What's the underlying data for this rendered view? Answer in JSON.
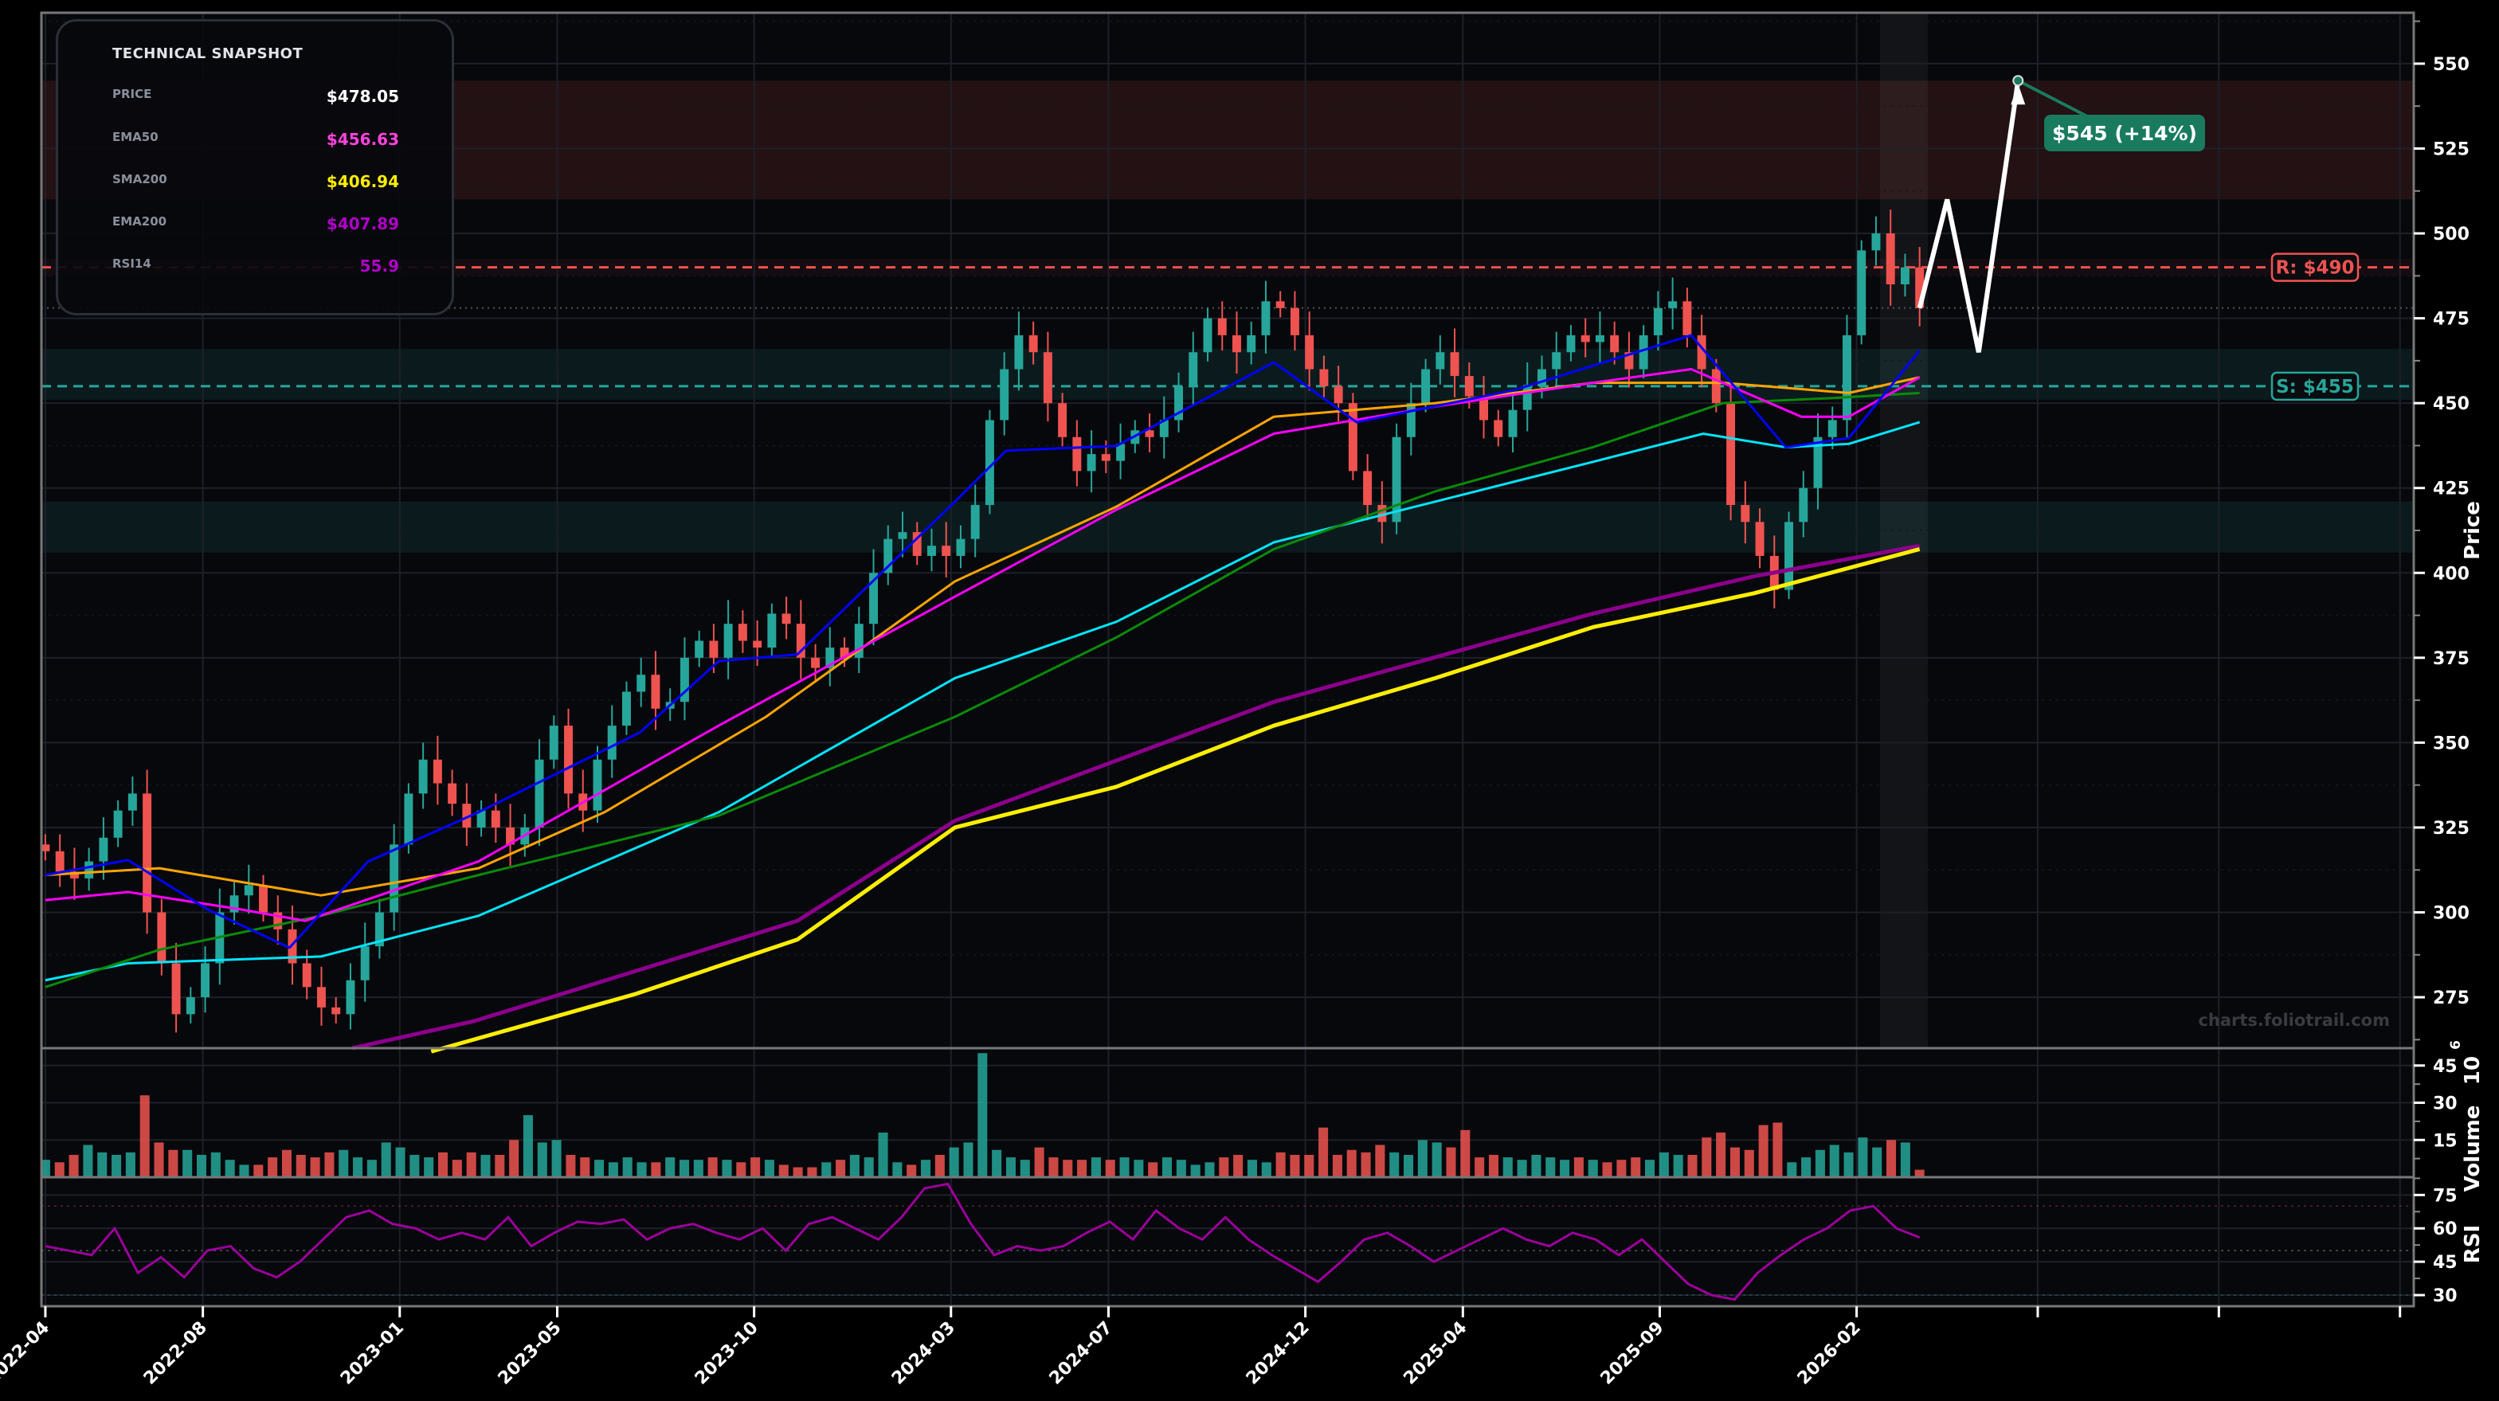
{
  "snapshot": {
    "title": "TECHNICAL SNAPSHOT",
    "rows": [
      {
        "label": "PRICE",
        "value": "$478.05",
        "color": "#ffffff"
      },
      {
        "label": "EMA50",
        "value": "$456.63",
        "color": "#ff44dd"
      },
      {
        "label": "SMA200",
        "value": "$406.94",
        "color": "#ffee00"
      },
      {
        "label": "EMA200",
        "value": "$407.89",
        "color": "#b000c8"
      },
      {
        "label": "RSI14",
        "value": "55.9",
        "color": "#b000c8"
      }
    ]
  },
  "watermark": "charts.foliotrail.com",
  "chart_data": {
    "type": "candlestick",
    "x_unit": "months since 2022-04",
    "xlim": [
      -0.1,
      60.15
    ],
    "x_ticks": [
      {
        "m": 0,
        "label": "2022-04"
      },
      {
        "m": 4,
        "label": "2022-08"
      },
      {
        "m": 9,
        "label": "2023-01"
      },
      {
        "m": 13,
        "label": "2023-05"
      },
      {
        "m": 18,
        "label": "2023-10"
      },
      {
        "m": 23,
        "label": "2024-03"
      },
      {
        "m": 27,
        "label": "2024-07"
      },
      {
        "m": 32,
        "label": "2024-12"
      },
      {
        "m": 36,
        "label": "2025-04"
      },
      {
        "m": 41,
        "label": "2025-09"
      },
      {
        "m": 46,
        "label": "2026-02"
      },
      {
        "m": 50.6,
        "label": ""
      },
      {
        "m": 55.2,
        "label": ""
      },
      {
        "m": 59.8,
        "label": ""
      }
    ],
    "price": {
      "ylabel": "Price",
      "ylim": [
        260,
        565
      ],
      "ticks": [
        275,
        300,
        325,
        350,
        375,
        400,
        425,
        450,
        475,
        500,
        525,
        550
      ],
      "start_m": 0,
      "end_m": 47.6,
      "closes": [
        318,
        312,
        310,
        315,
        322,
        330,
        335,
        300,
        285,
        270,
        275,
        285,
        300,
        305,
        308,
        300,
        295,
        285,
        278,
        272,
        270,
        280,
        290,
        300,
        320,
        335,
        345,
        338,
        332,
        325,
        330,
        325,
        320,
        325,
        345,
        355,
        335,
        330,
        345,
        355,
        365,
        370,
        360,
        362,
        375,
        380,
        375,
        385,
        380,
        378,
        388,
        385,
        375,
        372,
        378,
        375,
        385,
        400,
        410,
        412,
        405,
        408,
        405,
        410,
        420,
        445,
        460,
        470,
        465,
        450,
        440,
        430,
        435,
        433,
        438,
        442,
        440,
        445,
        455,
        465,
        475,
        470,
        465,
        470,
        480,
        478,
        470,
        460,
        455,
        450,
        430,
        420,
        415,
        440,
        450,
        460,
        465,
        458,
        452,
        445,
        440,
        448,
        455,
        460,
        465,
        470,
        468,
        470,
        465,
        460,
        470,
        478,
        480,
        470,
        460,
        450,
        420,
        415,
        405,
        395,
        415,
        425,
        440,
        445,
        470,
        495,
        500,
        485,
        490,
        478.05
      ],
      "up_color": "#26a69a",
      "down_color": "#ef5350"
    },
    "moving_averages": [
      {
        "name": "EMA200",
        "color": "#8b008b",
        "width": 5,
        "points": [
          [
            7.8,
            260
          ],
          [
            10.9,
            268
          ],
          [
            19.1,
            297.5
          ],
          [
            23.1,
            327
          ],
          [
            31.2,
            362
          ],
          [
            39.3,
            388
          ],
          [
            43.4,
            399
          ],
          [
            47.6,
            408
          ]
        ]
      },
      {
        "name": "SMA200",
        "color": "#ffee00",
        "width": 5,
        "points": [
          [
            9.8,
            259
          ],
          [
            15,
            276
          ],
          [
            19.1,
            292
          ],
          [
            23.1,
            325
          ],
          [
            27.2,
            337
          ],
          [
            31.2,
            355
          ],
          [
            35.3,
            369
          ],
          [
            39.3,
            384
          ],
          [
            43.4,
            394
          ],
          [
            47.6,
            407
          ]
        ]
      },
      {
        "name": "Cyan MA",
        "color": "#00e5ff",
        "width": 3,
        "points": [
          [
            0,
            280
          ],
          [
            2.1,
            285
          ],
          [
            7,
            287
          ],
          [
            11,
            299
          ],
          [
            17.1,
            329.5
          ],
          [
            23.1,
            369
          ],
          [
            27.2,
            385.6
          ],
          [
            31.2,
            409
          ],
          [
            35.3,
            421
          ],
          [
            39.3,
            432.7
          ],
          [
            42.1,
            441
          ],
          [
            44.2,
            437
          ],
          [
            45.8,
            438
          ],
          [
            47.6,
            444.4
          ]
        ]
      },
      {
        "name": "Green MA",
        "color": "#0a8a0a",
        "width": 3,
        "points": [
          [
            0,
            278
          ],
          [
            2.9,
            289
          ],
          [
            7,
            299
          ],
          [
            11,
            311
          ],
          [
            17.1,
            328.5
          ],
          [
            23.1,
            357.6
          ],
          [
            27.2,
            381
          ],
          [
            31.2,
            407
          ],
          [
            35.3,
            424
          ],
          [
            39.3,
            437
          ],
          [
            42.6,
            450
          ],
          [
            45.4,
            451.5
          ],
          [
            47.6,
            453
          ]
        ]
      },
      {
        "name": "Orange MA",
        "color": "#ffa500",
        "width": 3,
        "points": [
          [
            0,
            311
          ],
          [
            2.9,
            313
          ],
          [
            7,
            305
          ],
          [
            11,
            313
          ],
          [
            14.2,
            329.5
          ],
          [
            18.3,
            357.6
          ],
          [
            23.1,
            397.5
          ],
          [
            27.2,
            419.5
          ],
          [
            31.2,
            446
          ],
          [
            35.3,
            450
          ],
          [
            39.3,
            456
          ],
          [
            42.6,
            456
          ],
          [
            45.8,
            453
          ],
          [
            47.6,
            457.6
          ]
        ]
      },
      {
        "name": "EMA50",
        "color": "#ff00ff",
        "width": 3,
        "points": [
          [
            0,
            303.6
          ],
          [
            2.1,
            306
          ],
          [
            4.9,
            301
          ],
          [
            6.6,
            297.5
          ],
          [
            11,
            315
          ],
          [
            17.1,
            355
          ],
          [
            23.1,
            393
          ],
          [
            27.2,
            418.6
          ],
          [
            31.2,
            441
          ],
          [
            35.3,
            449
          ],
          [
            39.3,
            456
          ],
          [
            41.8,
            460
          ],
          [
            44.6,
            446
          ],
          [
            45.8,
            446
          ],
          [
            47.6,
            457.6
          ]
        ]
      },
      {
        "name": "Blue MA",
        "color": "#0000ff",
        "width": 3,
        "points": [
          [
            0,
            311
          ],
          [
            2.1,
            315.4
          ],
          [
            4.1,
            301
          ],
          [
            6.2,
            289.6
          ],
          [
            8.2,
            315
          ],
          [
            11,
            329.5
          ],
          [
            15.1,
            353
          ],
          [
            17.1,
            374
          ],
          [
            19.1,
            376
          ],
          [
            23.1,
            421
          ],
          [
            24.4,
            436
          ],
          [
            27.2,
            437.4
          ],
          [
            31.2,
            462
          ],
          [
            33.3,
            444.4
          ],
          [
            37.3,
            453.8
          ],
          [
            41.8,
            470
          ],
          [
            44.2,
            437
          ],
          [
            45.8,
            439.7
          ],
          [
            47.6,
            465.5
          ]
        ]
      }
    ],
    "levels": {
      "resistance": {
        "value": 490,
        "label": "R: $490",
        "color": "#ef5350"
      },
      "support": {
        "value": 455,
        "label": "S: $455",
        "color": "#26a69a"
      },
      "current_price": 478.05,
      "resistance_zone": [
        510,
        545
      ],
      "support_zones": [
        [
          451,
          466
        ],
        [
          406,
          421
        ]
      ]
    },
    "projection": {
      "path": [
        [
          47.6,
          478
        ],
        [
          48.3,
          510
        ],
        [
          49.1,
          465
        ],
        [
          50.1,
          545
        ]
      ],
      "target_label": "$545 (+14%)",
      "target_color": "#1a7a5e"
    },
    "volume": {
      "ylabel": "Volume",
      "unit_label": "10",
      "unit_exp": "6",
      "ylim": [
        0,
        52
      ],
      "ticks": [
        15,
        30,
        45
      ],
      "values": [
        7,
        6,
        9,
        13,
        10,
        9,
        10,
        33,
        14,
        11,
        11,
        9,
        10,
        7,
        5,
        5,
        8,
        11,
        9,
        8,
        10,
        11,
        8,
        7,
        14,
        12,
        9,
        8,
        10,
        7,
        10,
        9,
        9,
        15,
        25,
        14,
        15,
        9,
        8,
        7,
        6,
        8,
        6,
        6,
        8,
        7,
        7,
        8,
        7,
        6,
        8,
        7,
        5,
        4,
        4,
        6,
        7,
        9,
        8,
        18,
        6,
        5,
        7,
        9,
        12,
        14,
        50,
        11,
        8,
        7,
        12,
        8,
        7,
        7,
        8,
        7,
        8,
        7,
        6,
        8,
        7,
        5,
        6,
        8,
        9,
        7,
        6,
        10,
        9,
        9,
        20,
        9,
        11,
        10,
        13,
        10,
        9,
        15,
        14,
        12,
        19,
        8,
        9,
        8,
        7,
        9,
        8,
        7,
        8,
        7,
        6,
        7,
        8,
        7,
        10,
        9,
        9,
        16,
        18,
        12,
        11,
        21,
        22,
        6,
        8,
        11,
        13,
        10,
        16,
        12,
        15,
        14,
        3
      ]
    },
    "rsi": {
      "ylabel": "RSI",
      "ylim": [
        25,
        83
      ],
      "ticks": [
        30,
        45,
        60,
        75
      ],
      "color": "#9b009b",
      "values": [
        52,
        50,
        48,
        60,
        40,
        47,
        38,
        50,
        52,
        42,
        38,
        45,
        55,
        65,
        68,
        62,
        60,
        55,
        58,
        55,
        65,
        52,
        58,
        63,
        62,
        64,
        55,
        60,
        62,
        58,
        55,
        60,
        50,
        62,
        65,
        60,
        55,
        65,
        78,
        80,
        62,
        48,
        52,
        50,
        52,
        58,
        63,
        55,
        68,
        60,
        55,
        65,
        55,
        48,
        42,
        36,
        45,
        55,
        58,
        52,
        45,
        50,
        55,
        60,
        55,
        52,
        58,
        55,
        48,
        55,
        45,
        35,
        30,
        28,
        40,
        48,
        55,
        60,
        68,
        70,
        60,
        55.9
      ]
    }
  }
}
